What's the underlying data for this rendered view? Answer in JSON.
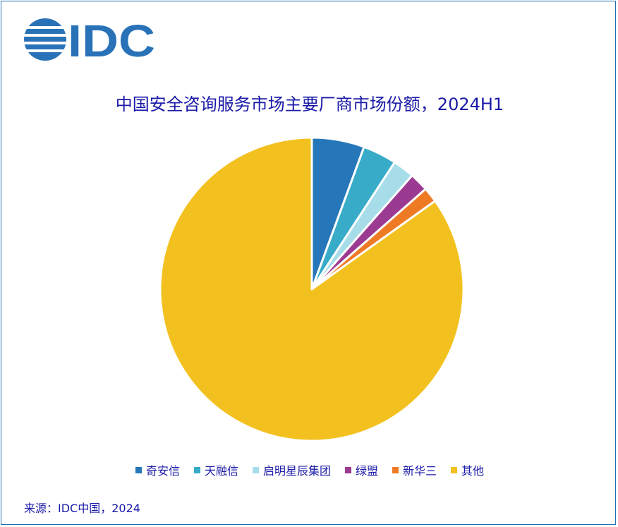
{
  "logo": {
    "text": "IDC",
    "color": "#2a72b8"
  },
  "chart_data": {
    "type": "pie",
    "title": "中国安全咨询服务市场主要厂商市场份额，2024H1",
    "categories": [
      "奇安信",
      "天融信",
      "启明星辰集团",
      "绿盟",
      "新华三",
      "其他"
    ],
    "values": [
      5.6,
      3.6,
      2.3,
      2.0,
      1.6,
      84.9
    ],
    "colors": [
      "#2577b9",
      "#37abc8",
      "#a6dde8",
      "#9b3a91",
      "#ee7a24",
      "#f3c11f"
    ],
    "legend_position": "bottom",
    "start_angle_deg": 0,
    "direction": "clockwise"
  },
  "source_text": "来源：IDC中国，2024"
}
